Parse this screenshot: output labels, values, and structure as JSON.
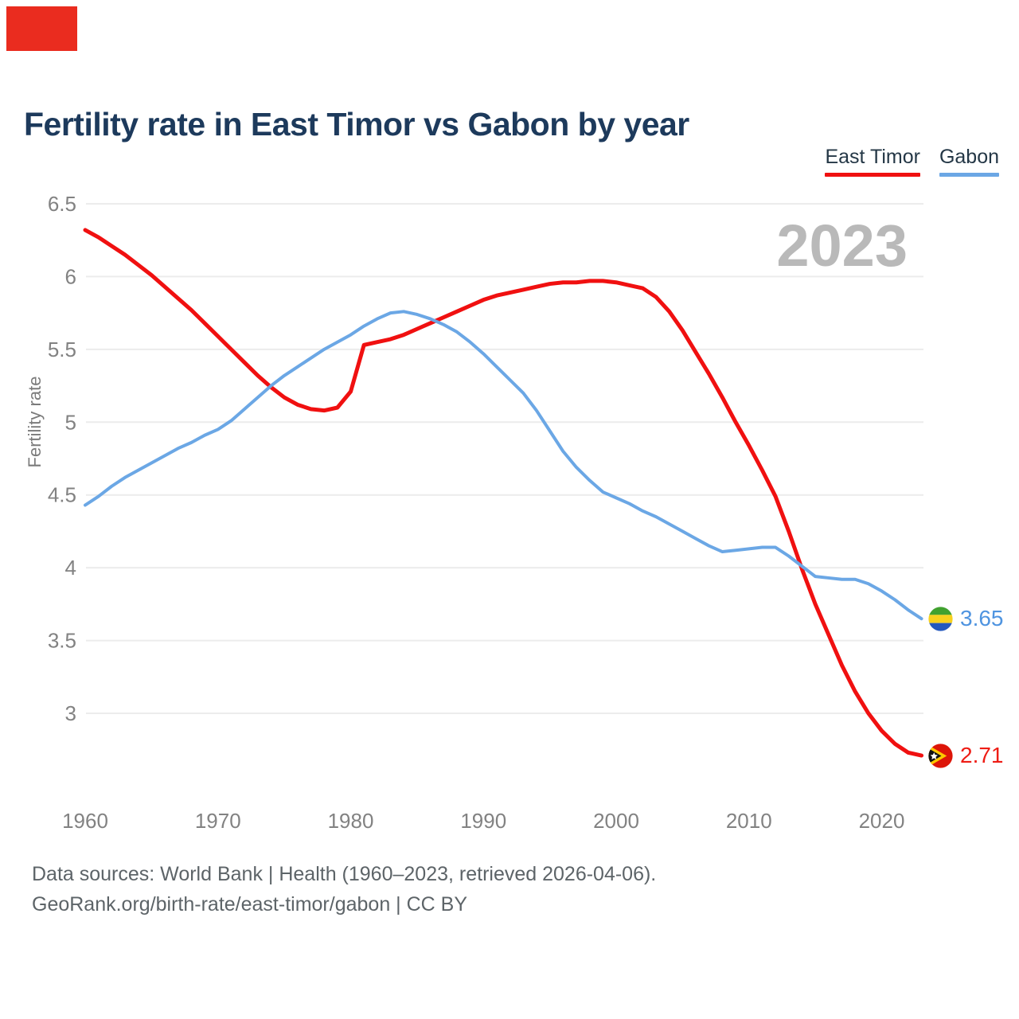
{
  "title": "Fertility rate in East Timor vs Gabon by year",
  "watermark": "2023",
  "legend": {
    "items": [
      {
        "label": "East Timor",
        "color": "#f01010"
      },
      {
        "label": "Gabon",
        "color": "#6ba7e5"
      }
    ]
  },
  "y_axis": {
    "title": "Fertility rate",
    "ticks": [
      "6.5",
      "6",
      "5.5",
      "5",
      "4.5",
      "4",
      "3.5",
      "3"
    ]
  },
  "x_axis": {
    "ticks": [
      "1960",
      "1970",
      "1980",
      "1990",
      "2000",
      "2010",
      "2020"
    ]
  },
  "end_labels": [
    {
      "series": "Gabon",
      "value": "3.65",
      "color": "#4f94e0",
      "flag": "gabon-flag"
    },
    {
      "series": "East Timor",
      "value": "2.71",
      "color": "#ee1c14",
      "flag": "east-timor-flag"
    }
  ],
  "footer": {
    "line1": "Data sources: World Bank | Health (1960–2023, retrieved 2026-04-06).",
    "line2": "GeoRank.org/birth-rate/east-timor/gabon | CC BY"
  },
  "decorations": {
    "corner_marker_color": "#ea2c1f"
  },
  "colors": {
    "title": "#1d3a5c",
    "axis_text": "#828282",
    "gridline": "#ececec",
    "watermark": "#b9b9b9",
    "footer": "#5d6468",
    "east_timor": "#f01010",
    "gabon": "#6ba7e5"
  },
  "chart_data": {
    "type": "line",
    "title": "Fertility rate in East Timor vs Gabon by year",
    "xlabel": "",
    "ylabel": "Fertility rate",
    "ylim": [
      2.6,
      6.6
    ],
    "xlim": [
      1960,
      2023
    ],
    "grid": "horizontal",
    "legend_position": "top-right",
    "watermark": "2023",
    "years": [
      1960,
      1961,
      1962,
      1963,
      1964,
      1965,
      1966,
      1967,
      1968,
      1969,
      1970,
      1971,
      1972,
      1973,
      1974,
      1975,
      1976,
      1977,
      1978,
      1979,
      1980,
      1981,
      1982,
      1983,
      1984,
      1985,
      1986,
      1987,
      1988,
      1989,
      1990,
      1991,
      1992,
      1993,
      1994,
      1995,
      1996,
      1997,
      1998,
      1999,
      2000,
      2001,
      2002,
      2003,
      2004,
      2005,
      2006,
      2007,
      2008,
      2009,
      2010,
      2011,
      2012,
      2013,
      2014,
      2015,
      2016,
      2017,
      2018,
      2019,
      2020,
      2021,
      2022,
      2023
    ],
    "series": [
      {
        "name": "East Timor",
        "color": "#f01010",
        "values": [
          6.32,
          6.27,
          6.21,
          6.15,
          6.08,
          6.01,
          5.93,
          5.85,
          5.77,
          5.68,
          5.59,
          5.5,
          5.41,
          5.32,
          5.24,
          5.17,
          5.12,
          5.09,
          5.08,
          5.1,
          5.21,
          5.53,
          5.55,
          5.57,
          5.6,
          5.64,
          5.68,
          5.72,
          5.76,
          5.8,
          5.84,
          5.87,
          5.89,
          5.91,
          5.93,
          5.95,
          5.96,
          5.96,
          5.97,
          5.97,
          5.96,
          5.94,
          5.92,
          5.86,
          5.76,
          5.63,
          5.48,
          5.33,
          5.17,
          5.0,
          4.84,
          4.67,
          4.49,
          4.25,
          3.99,
          3.75,
          3.54,
          3.33,
          3.15,
          3.0,
          2.88,
          2.79,
          2.73,
          2.71
        ]
      },
      {
        "name": "Gabon",
        "color": "#6ba7e5",
        "values": [
          4.43,
          4.49,
          4.56,
          4.62,
          4.67,
          4.72,
          4.77,
          4.82,
          4.86,
          4.91,
          4.95,
          5.01,
          5.09,
          5.17,
          5.25,
          5.32,
          5.38,
          5.44,
          5.5,
          5.55,
          5.6,
          5.66,
          5.71,
          5.75,
          5.76,
          5.74,
          5.71,
          5.67,
          5.62,
          5.55,
          5.47,
          5.38,
          5.29,
          5.2,
          5.08,
          4.94,
          4.8,
          4.69,
          4.6,
          4.52,
          4.48,
          4.44,
          4.39,
          4.35,
          4.3,
          4.25,
          4.2,
          4.15,
          4.11,
          4.12,
          4.13,
          4.14,
          4.14,
          4.08,
          4.01,
          3.94,
          3.93,
          3.92,
          3.92,
          3.89,
          3.84,
          3.78,
          3.71,
          3.65
        ]
      }
    ],
    "end_values": {
      "East Timor": 2.71,
      "Gabon": 3.65
    }
  }
}
